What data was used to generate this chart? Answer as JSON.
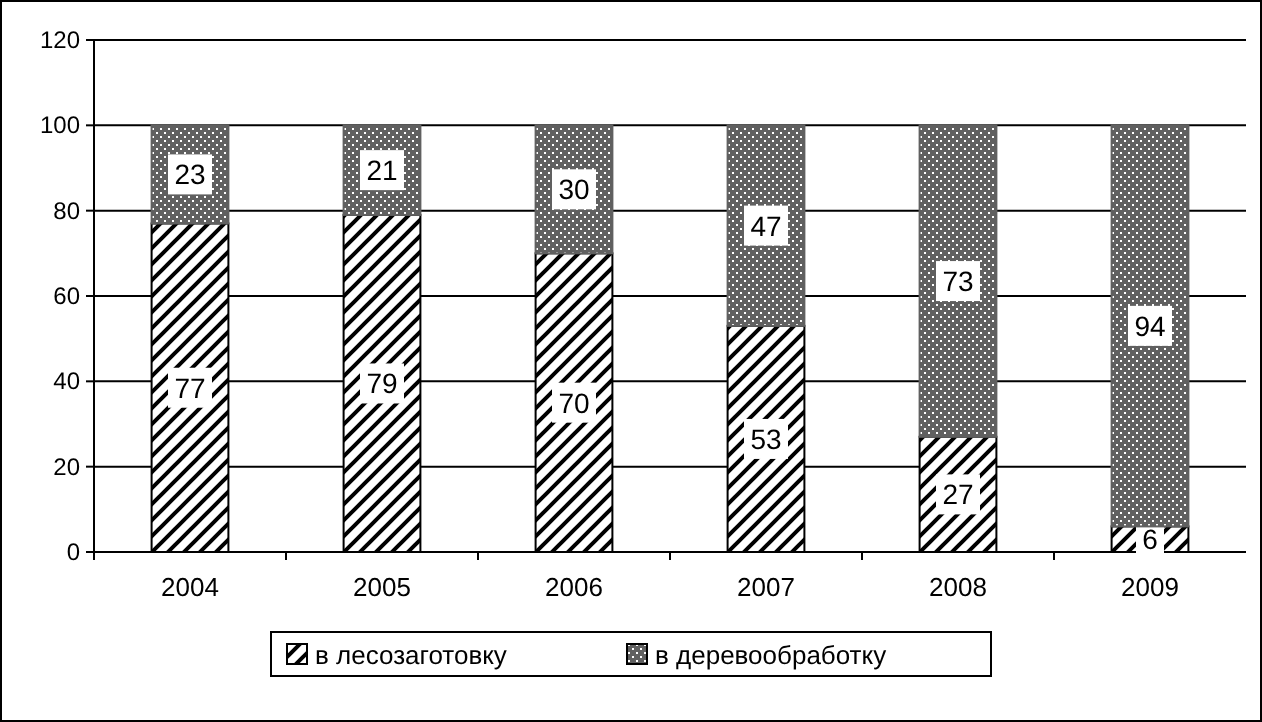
{
  "chart_data": {
    "type": "bar",
    "stacked": true,
    "categories": [
      "2004",
      "2005",
      "2006",
      "2007",
      "2008",
      "2009"
    ],
    "series": [
      {
        "name": "в лесозаготовку",
        "color": "#000000",
        "values": [
          77,
          79,
          70,
          53,
          27,
          6
        ]
      },
      {
        "name": "в деревообработку",
        "color": "#606060",
        "values": [
          23,
          21,
          30,
          47,
          73,
          94
        ]
      }
    ],
    "ylim": [
      0,
      120
    ],
    "yticks": [
      0,
      20,
      40,
      60,
      80,
      100,
      120
    ],
    "grid": "y",
    "legend": "bottom",
    "data_labels": true
  }
}
